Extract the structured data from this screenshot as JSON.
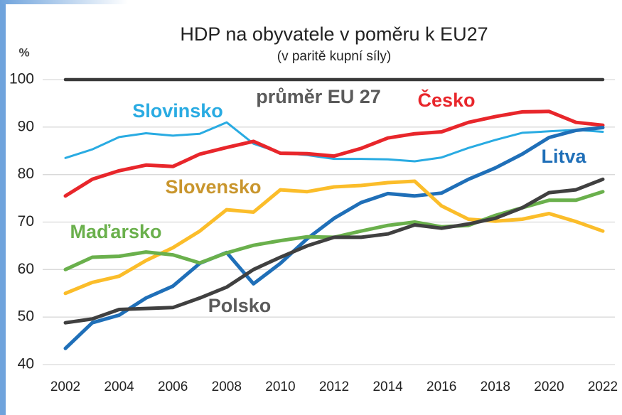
{
  "chart_data": {
    "type": "line",
    "title": "HDP na obyvatele v poměru k EU27",
    "subtitle": "(v paritě kupní síly)",
    "y_label": "%",
    "x": [
      2002,
      2003,
      2004,
      2005,
      2006,
      2007,
      2008,
      2009,
      2010,
      2011,
      2012,
      2013,
      2014,
      2015,
      2016,
      2017,
      2018,
      2019,
      2020,
      2021,
      2022
    ],
    "xlim": [
      2002,
      2022
    ],
    "xticks": [
      2002,
      2004,
      2006,
      2008,
      2010,
      2012,
      2014,
      2016,
      2018,
      2020,
      2022
    ],
    "ylim": [
      40,
      100
    ],
    "yticks": [
      40,
      50,
      60,
      70,
      80,
      90,
      100
    ],
    "grid": true,
    "series": [
      {
        "name": "průměr EU 27",
        "color": "#3a3a3a",
        "label_color": "#5a5a5a",
        "values": [
          100,
          100,
          100,
          100,
          100,
          100,
          100,
          100,
          100,
          100,
          100,
          100,
          100,
          100,
          100,
          100,
          100,
          100,
          100,
          100,
          100
        ]
      },
      {
        "name": "Slovinsko",
        "color": "#29abe2",
        "label_color": "#29abe2",
        "values": [
          83.5,
          85.3,
          87.9,
          88.7,
          88.2,
          88.6,
          91,
          86.5,
          84.6,
          84.1,
          83.3,
          83.3,
          83.2,
          82.8,
          83.6,
          85.6,
          87.3,
          88.8,
          89.1,
          89.4,
          89
        ]
      },
      {
        "name": "Česko",
        "color": "#e8262b",
        "label_color": "#e8262b",
        "values": [
          75.5,
          79,
          80.8,
          82,
          81.7,
          84.3,
          85.7,
          87,
          84.5,
          84.4,
          83.9,
          85.5,
          87.7,
          88.6,
          89,
          91,
          92.2,
          93.2,
          93.3,
          91,
          90.4
        ]
      },
      {
        "name": "Litva",
        "color": "#1f6fb8",
        "label_color": "#1f6fb8",
        "values": [
          43.4,
          48.8,
          50.4,
          54,
          56.5,
          61.3,
          63.6,
          57,
          61.3,
          66.5,
          70.8,
          74.1,
          76,
          75.5,
          76.1,
          79,
          81.4,
          84.3,
          87.8,
          89.3,
          89.9
        ]
      },
      {
        "name": "Slovensko",
        "color": "#fbbd2a",
        "label_color": "#c9962e",
        "values": [
          55,
          57.3,
          58.6,
          61.9,
          64.6,
          68.1,
          72.6,
          72.1,
          76.8,
          76.4,
          77.4,
          77.7,
          78.3,
          78.6,
          73.4,
          70.6,
          70.2,
          70.6,
          71.8,
          70.1,
          68.1
        ]
      },
      {
        "name": "Maďarsko",
        "color": "#6ab04c",
        "label_color": "#6ab04c",
        "values": [
          60,
          62.6,
          62.8,
          63.7,
          63.1,
          61.4,
          63.5,
          65.1,
          66.1,
          66.9,
          66.8,
          68.1,
          69.3,
          70,
          69,
          69.3,
          71.4,
          73,
          74.6,
          74.6,
          76.4
        ]
      },
      {
        "name": "Polsko",
        "color": "#404040",
        "label_color": "#5a5a5a",
        "values": [
          48.8,
          49.6,
          51.6,
          51.8,
          52,
          54,
          56.3,
          60,
          62.6,
          65,
          66.8,
          66.8,
          67.5,
          69.4,
          68.7,
          69.6,
          70.8,
          73,
          76.2,
          76.8,
          79
        ]
      }
    ]
  }
}
